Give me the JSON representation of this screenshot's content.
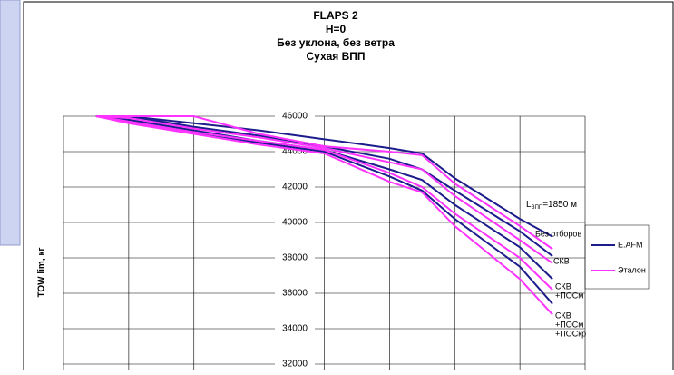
{
  "chart_data": {
    "type": "line",
    "title": [
      "FLAPS 2",
      "H=0",
      "Без уклона, без ветра",
      "Сухая ВПП"
    ],
    "ylabel": "TOW lim, кг",
    "x": [
      0.5,
      1,
      2,
      3,
      4,
      5,
      5.5,
      6,
      7,
      7.5
    ],
    "xlim": [
      0,
      8
    ],
    "xticks": [
      0,
      1,
      2,
      3,
      4,
      5,
      6,
      7,
      8
    ],
    "ylim": [
      32000,
      46000
    ],
    "yticks": [
      32000,
      34000,
      36000,
      38000,
      40000,
      42000,
      44000,
      46000
    ],
    "grid": true,
    "series": [
      {
        "name": "E.AFM",
        "color": "#1c1c8c",
        "lines": [
          [
            46000,
            46000,
            45600,
            45200,
            44700,
            44200,
            43900,
            42500,
            40200,
            39200
          ],
          [
            46000,
            46000,
            45400,
            44900,
            44300,
            43600,
            43000,
            41800,
            39500,
            38100
          ],
          [
            46000,
            45800,
            45200,
            44600,
            44100,
            43000,
            42400,
            41000,
            38600,
            36800
          ],
          [
            46000,
            45700,
            45100,
            44500,
            44000,
            42600,
            41800,
            40200,
            37500,
            35400
          ]
        ]
      },
      {
        "name": "Эталон",
        "color": "#ff33ff",
        "lines": [
          [
            46000,
            46000,
            46000,
            45000,
            44300,
            44000,
            43800,
            42200,
            39800,
            38500
          ],
          [
            46000,
            45900,
            45300,
            44800,
            44200,
            43400,
            43000,
            41500,
            39000,
            37700
          ],
          [
            46000,
            45700,
            45100,
            44600,
            44100,
            42800,
            42000,
            40500,
            38000,
            36200
          ],
          [
            46000,
            45600,
            45000,
            44400,
            43900,
            42300,
            41700,
            39800,
            36800,
            34800
          ]
        ]
      }
    ],
    "annotations": [
      {
        "lines": [
          "Без отборов"
        ]
      },
      {
        "lines": [
          "СКВ"
        ]
      },
      {
        "lines": [
          "СКВ",
          "+ПОСм"
        ]
      },
      {
        "lines": [
          "СКВ",
          "+ПОСм",
          "+ПОСкр"
        ]
      }
    ],
    "runway_label": {
      "main": "L",
      "sub": "ВПП",
      "rest": "=1850 м"
    }
  }
}
